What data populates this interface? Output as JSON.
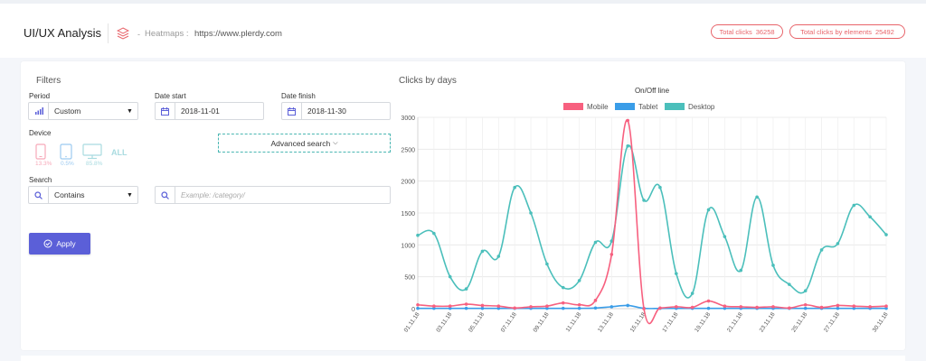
{
  "header": {
    "title": "UI/UX Analysis",
    "crumb_dash": "-",
    "crumb_section": "Heatmaps :",
    "site_url": "https://www.plerdy.com",
    "badges": [
      {
        "label": "Total clicks",
        "value": "36258"
      },
      {
        "label": "Total clicks by elements",
        "value": "25492"
      }
    ]
  },
  "filters": {
    "title": "Filters",
    "period": {
      "label": "Period",
      "value": "Custom"
    },
    "date_start": {
      "label": "Date start",
      "value": "2018-11-01"
    },
    "date_finish": {
      "label": "Date finish",
      "value": "2018-11-30"
    },
    "device": {
      "label": "Device",
      "items": [
        {
          "name": "mobile",
          "pct": "13.3%",
          "color": "#f7a9b9"
        },
        {
          "name": "tablet",
          "pct": "0.5%",
          "color": "#9ccaf0"
        },
        {
          "name": "desktop",
          "pct": "85.8%",
          "color": "#a9dbe0"
        }
      ],
      "all_label": "ALL"
    },
    "advanced_search": "Advanced search",
    "search": {
      "label": "Search",
      "mode": "Contains",
      "placeholder": "Example: /category/"
    },
    "apply_label": "Apply"
  },
  "colors": {
    "accent": "#5b5fd8",
    "mobile": "#f7607f",
    "tablet": "#3a9de8",
    "desktop": "#4bbfbb",
    "badge": "#e8646a"
  },
  "chart_title": "Clicks by days",
  "chart_data": {
    "type": "line",
    "title": "On/Off line",
    "legend_position": "top",
    "grid": true,
    "ylim": [
      0,
      3000
    ],
    "yticks": [
      0,
      500,
      1000,
      1500,
      2000,
      2500,
      3000
    ],
    "x": [
      "01.11.18",
      "02.11.18",
      "03.11.18",
      "04.11.18",
      "05.11.18",
      "06.11.18",
      "07.11.18",
      "08.11.18",
      "09.11.18",
      "10.11.18",
      "11.11.18",
      "12.11.18",
      "13.11.18",
      "14.11.18",
      "15.11.18",
      "16.11.18",
      "17.11.18",
      "18.11.18",
      "19.11.18",
      "20.11.18",
      "21.11.18",
      "22.11.18",
      "23.11.18",
      "24.11.18",
      "25.11.18",
      "26.11.18",
      "27.11.18",
      "28.11.18",
      "29.11.18",
      "30.11.18"
    ],
    "xtick_labels": [
      "01.11.18",
      "03.11.18",
      "05.11.18",
      "07.11.18",
      "09.11.18",
      "11.11.18",
      "13.11.18",
      "15.11.18",
      "17.11.18",
      "19.11.18",
      "21.11.18",
      "23.11.18",
      "25.11.18",
      "27.11.18",
      "30.11.18"
    ],
    "series": [
      {
        "name": "Mobile",
        "values": [
          60,
          40,
          40,
          70,
          50,
          40,
          10,
          30,
          40,
          90,
          60,
          130,
          850,
          2950,
          0,
          10,
          30,
          20,
          120,
          40,
          30,
          20,
          30,
          10,
          60,
          20,
          50,
          40,
          30,
          40
        ]
      },
      {
        "name": "Tablet",
        "values": [
          5,
          5,
          5,
          5,
          5,
          5,
          5,
          5,
          5,
          5,
          5,
          10,
          30,
          50,
          5,
          5,
          5,
          5,
          5,
          5,
          5,
          5,
          5,
          5,
          5,
          5,
          5,
          5,
          5,
          5
        ]
      },
      {
        "name": "Desktop",
        "values": [
          1150,
          1180,
          500,
          310,
          900,
          820,
          1900,
          1500,
          700,
          330,
          440,
          1040,
          1060,
          2550,
          1700,
          1900,
          550,
          240,
          1550,
          1130,
          600,
          1750,
          680,
          380,
          280,
          920,
          1020,
          1620,
          1440,
          1160
        ]
      }
    ]
  }
}
